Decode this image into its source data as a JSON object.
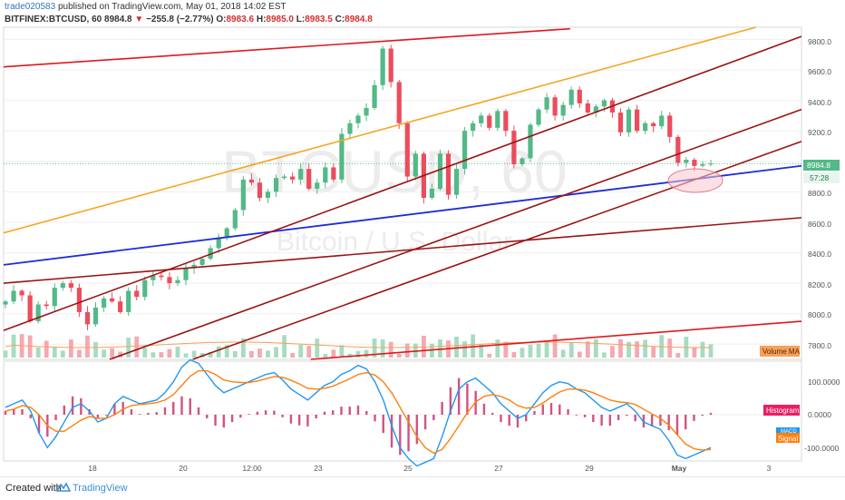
{
  "header": {
    "author": "trade020583",
    "published_text": "published on TradingView.com, May 01, 2018 14:02 EST",
    "symbol": "BITFINEX:BTCUSD, 60",
    "last": "8984.8",
    "change_arrow": "▼",
    "change": "−255.8 (−2.77%)",
    "o_label": "O:",
    "o": "8983.6",
    "h_label": "H:",
    "h": "8985.0",
    "l_label": "L:",
    "l": "8983.5",
    "c_label": "C:",
    "c": "8984.8"
  },
  "watermark": {
    "symbol": "BTCUSD, 60",
    "description": "Bitcoin / U.S. Dollar"
  },
  "price_axis": {
    "ticks": [
      "9800.0",
      "9600.0",
      "9400.0",
      "9200.0",
      "8800.0",
      "8600.0",
      "8400.0",
      "8200.0",
      "8000.0",
      "7800.0"
    ],
    "last_label": "8984.8",
    "countdown_label": "57:28"
  },
  "macd_axis": {
    "ticks": [
      "100.0000",
      "0.0000",
      "-100.0000"
    ]
  },
  "labels": {
    "volume_ma": "Volume MA",
    "histogram": "Histogram",
    "macd": "MACD",
    "signal": "Signal"
  },
  "time_axis": {
    "ticks": [
      "18",
      "20",
      "12:00",
      "23",
      "25",
      "27",
      "29",
      "May",
      "3"
    ]
  },
  "footer": {
    "created_with": "Created with",
    "brand": "TradingView"
  },
  "colors": {
    "up": "#53b987",
    "down": "#eb4d5c",
    "vol_up": "#a8dcc1",
    "vol_down": "#f4a9b0",
    "blue_line": "#1e2dd6",
    "orange_line": "#f5a623",
    "red_line": "#e0181b",
    "dark_red_line": "#9b1313",
    "macd": "#2196f3",
    "signal": "#ff7f0e",
    "hist": "#c2185b",
    "highlight": "#f7c6cf"
  },
  "chart_data": {
    "type": "candlestick",
    "symbol": "BTCUSD",
    "interval": "60",
    "ylim": [
      7700,
      9880
    ],
    "last_price": 8984.8,
    "x_ticks": [
      "18",
      "20",
      "12:00",
      "23",
      "25",
      "27",
      "29",
      "May",
      "3"
    ],
    "close_series": [
      8080,
      8150,
      8120,
      7950,
      8060,
      8050,
      8170,
      8200,
      8170,
      8010,
      7930,
      8040,
      8100,
      8080,
      8010,
      8150,
      8110,
      8220,
      8250,
      8240,
      8200,
      8220,
      8300,
      8320,
      8360,
      8430,
      8500,
      8560,
      8680,
      8880,
      8860,
      8760,
      8800,
      8890,
      8900,
      8880,
      8950,
      8820,
      8860,
      8960,
      8880,
      9180,
      9250,
      9300,
      9350,
      9500,
      9740,
      9520,
      9250,
      8900,
      9050,
      8760,
      8820,
      9050,
      8780,
      8950,
      9200,
      9250,
      9300,
      9220,
      9330,
      9200,
      8980,
      9020,
      9240,
      9340,
      9420,
      9300,
      9370,
      9470,
      9380,
      9320,
      9360,
      9400,
      9320,
      9190,
      9340,
      9200,
      9250,
      9230,
      9300,
      9160,
      8990,
      9010,
      8970,
      8980,
      8984.8
    ],
    "trendlines": [
      {
        "color": "blue",
        "from": {
          "x": 0,
          "y": 8320
        },
        "to": {
          "x": 1,
          "y": 8970
        }
      },
      {
        "color": "orange",
        "from": {
          "x": 0,
          "y": 8530
        },
        "to": {
          "x": 0.943,
          "y": 9880
        }
      },
      {
        "color": "red",
        "from": {
          "x": 0,
          "y": 9620
        },
        "to": {
          "x": 0.71,
          "y": 9870
        }
      },
      {
        "color": "red",
        "from": {
          "x": 0.385,
          "y": 7700
        },
        "to": {
          "x": 1,
          "y": 7950
        }
      },
      {
        "color": "dark_red",
        "from": {
          "x": 0,
          "y": 8200
        },
        "to": {
          "x": 1,
          "y": 8630
        }
      },
      {
        "color": "dark_red",
        "from": {
          "x": 0,
          "y": 7890
        },
        "to": {
          "x": 1,
          "y": 9820
        }
      },
      {
        "color": "dark_red",
        "from": {
          "x": 0.133,
          "y": 7700
        },
        "to": {
          "x": 1,
          "y": 9340
        }
      },
      {
        "color": "dark_red",
        "from": {
          "x": 0.237,
          "y": 7700
        },
        "to": {
          "x": 1,
          "y": 9130
        }
      }
    ],
    "macd": {
      "ylim": [
        -150,
        150
      ],
      "macd": [
        20,
        30,
        40,
        10,
        -50,
        -90,
        -60,
        -20,
        20,
        30,
        10,
        -20,
        -10,
        30,
        50,
        40,
        30,
        35,
        40,
        60,
        90,
        130,
        150,
        140,
        110,
        80,
        60,
        70,
        80,
        90,
        100,
        110,
        115,
        95,
        70,
        55,
        40,
        60,
        80,
        90,
        110,
        120,
        135,
        125,
        90,
        40,
        -30,
        -90,
        -120,
        -140,
        -130,
        -120,
        -60,
        10,
        70,
        90,
        100,
        80,
        60,
        30,
        10,
        -10,
        0,
        30,
        60,
        80,
        90,
        85,
        70,
        60,
        40,
        20,
        10,
        20,
        30,
        10,
        -20,
        -30,
        -40,
        -70,
        -110,
        -120,
        -110,
        -100,
        -90
      ],
      "signal": [
        10,
        15,
        25,
        20,
        0,
        -30,
        -45,
        -45,
        -30,
        -15,
        -5,
        -10,
        -10,
        0,
        15,
        25,
        28,
        30,
        33,
        40,
        55,
        80,
        105,
        120,
        120,
        110,
        95,
        90,
        88,
        88,
        92,
        98,
        104,
        102,
        94,
        84,
        72,
        70,
        72,
        78,
        88,
        98,
        110,
        115,
        108,
        90,
        60,
        20,
        -20,
        -60,
        -90,
        -105,
        -95,
        -65,
        -30,
        5,
        35,
        50,
        55,
        50,
        40,
        25,
        18,
        20,
        32,
        48,
        62,
        70,
        70,
        67,
        60,
        50,
        40,
        35,
        33,
        28,
        15,
        2,
        -10,
        -28,
        -55,
        -80,
        -93,
        -97,
        -95
      ]
    }
  }
}
